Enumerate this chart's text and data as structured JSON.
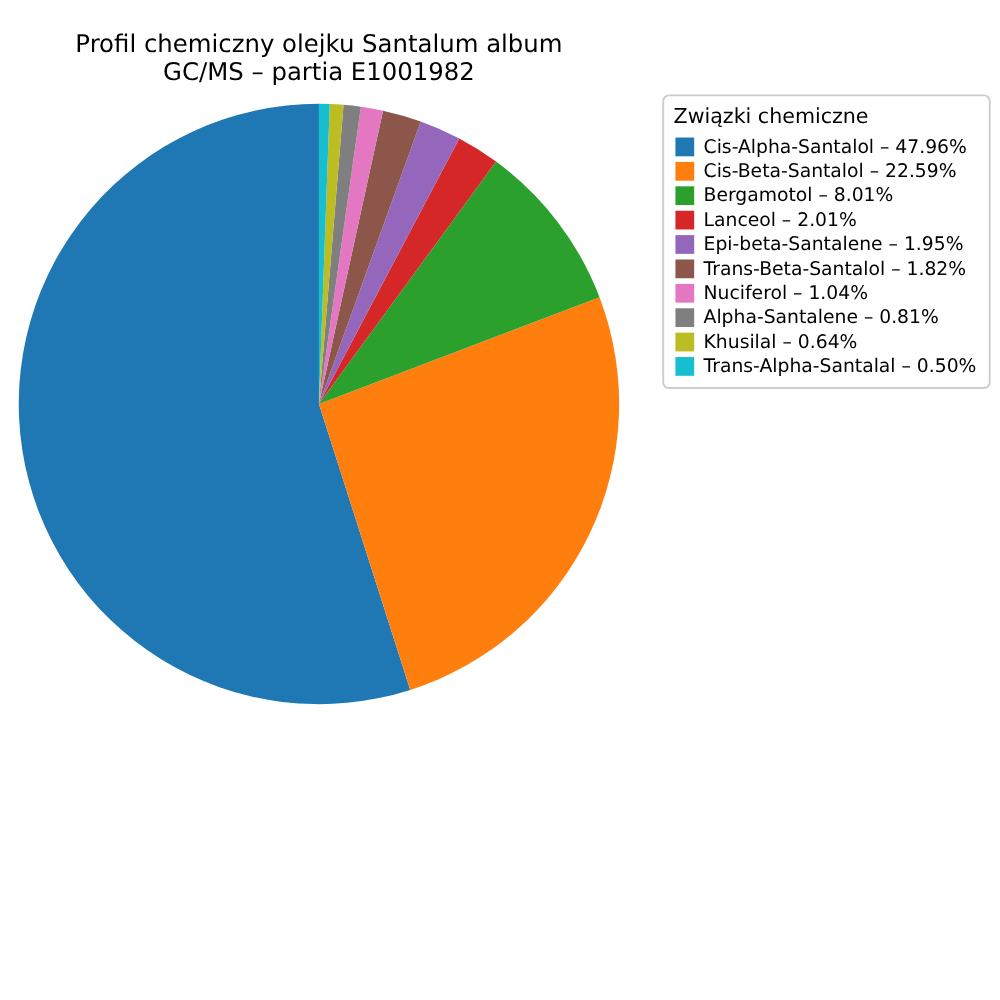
{
  "chart_data": {
    "type": "pie",
    "title": "Profil chemiczny olejku Santalum album\nGC/MS – partia E1001982",
    "legend_title": "Związki chemiczne",
    "legend": "right",
    "categories": [
      "Cis-Alpha-Santalol",
      "Cis-Beta-Santalol",
      "Bergamotol",
      "Lanceol",
      "Epi-beta-Santalene",
      "Trans-Beta-Santalol",
      "Nuciferol",
      "Alpha-Santalene",
      "Khusilal",
      "Trans-Alpha-Santalal"
    ],
    "values": [
      47.96,
      22.59,
      8.01,
      2.01,
      1.95,
      1.82,
      1.04,
      0.81,
      0.64,
      0.5
    ],
    "value_labels": [
      "47.96%",
      "22.59%",
      "8.01%",
      "2.01%",
      "1.95%",
      "1.82%",
      "1.04%",
      "0.81%",
      "0.64%",
      "0.50%"
    ],
    "colors": [
      "#1f77b4",
      "#ff7f0e",
      "#2ca02c",
      "#d62728",
      "#9467bd",
      "#8c564b",
      "#e377c2",
      "#7f7f7f",
      "#bcbd22",
      "#17becf"
    ]
  }
}
